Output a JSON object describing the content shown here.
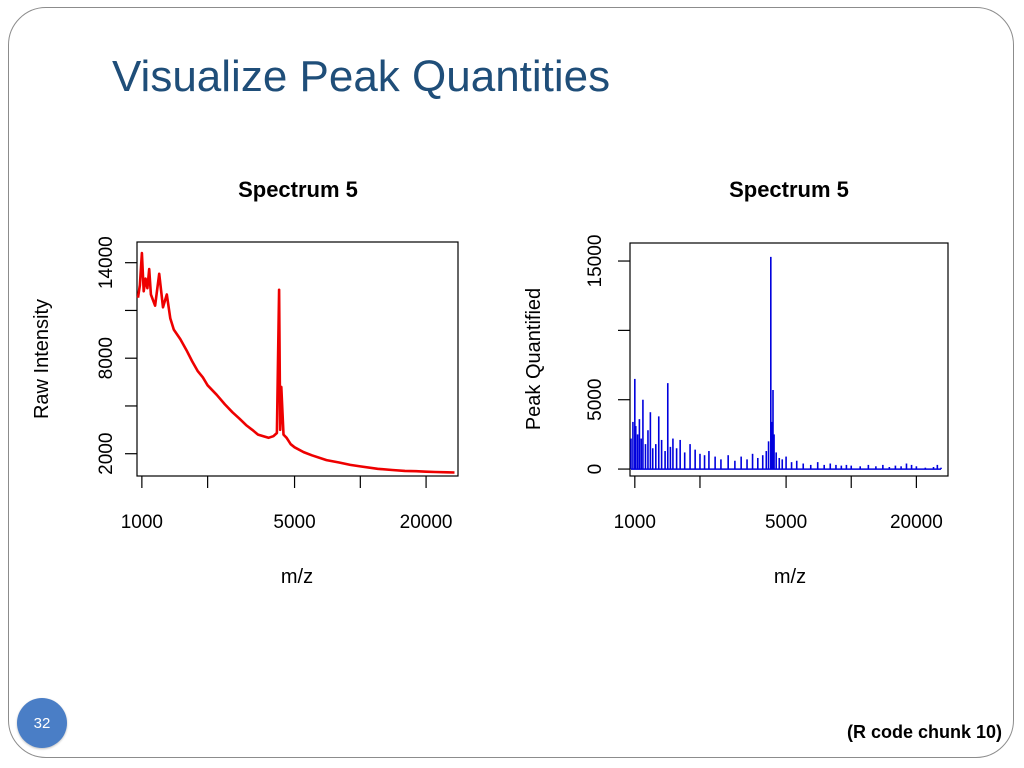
{
  "slide": {
    "title": "Visualize Peak Quantities",
    "page_number": "32",
    "footer_note": "(R code chunk 10)"
  },
  "colors": {
    "title": "#1f4e79",
    "raw": "#ee0000",
    "quantified": "#0000dd",
    "badge": "#4a7ec6"
  },
  "chart_data": [
    {
      "type": "line",
      "title": "Spectrum 5",
      "xlabel": "m/z",
      "ylabel": "Raw Intensity",
      "x_scale": "log",
      "xlim": [
        950,
        28000
      ],
      "ylim": [
        600,
        15300
      ],
      "x_ticks": [
        1000,
        2000,
        5000,
        10000,
        20000
      ],
      "x_tick_labels": [
        "1000",
        "",
        "5000",
        "",
        "20000"
      ],
      "y_ticks": [
        2000,
        5000,
        8000,
        11000,
        14000
      ],
      "y_tick_labels": [
        "2000",
        "",
        "8000",
        "",
        "14000"
      ],
      "series": [
        {
          "color": "#ee0000",
          "x": [
            960,
            980,
            1000,
            1020,
            1040,
            1060,
            1080,
            1100,
            1150,
            1200,
            1250,
            1300,
            1350,
            1400,
            1500,
            1600,
            1700,
            1800,
            1900,
            2000,
            2200,
            2400,
            2600,
            2800,
            3000,
            3200,
            3400,
            3600,
            3800,
            4000,
            4150,
            4250,
            4300,
            4350,
            4450,
            4600,
            4800,
            5000,
            5500,
            6000,
            7000,
            8000,
            9000,
            10000,
            12000,
            14000,
            16000,
            18000,
            20000,
            22000,
            25000,
            27000
          ],
          "y": [
            11800,
            12600,
            14600,
            12200,
            13000,
            12400,
            13600,
            12000,
            11300,
            13300,
            11200,
            12000,
            10500,
            9800,
            9200,
            8500,
            7800,
            7200,
            6800,
            6300,
            5700,
            5100,
            4600,
            4200,
            3800,
            3500,
            3200,
            3100,
            3000,
            3100,
            3300,
            12300,
            3500,
            6200,
            3200,
            3000,
            2600,
            2400,
            2100,
            1900,
            1600,
            1450,
            1300,
            1200,
            1050,
            980,
            920,
            900,
            870,
            850,
            830,
            820
          ]
        }
      ]
    },
    {
      "type": "bar",
      "title": "Spectrum 5",
      "xlabel": "m/z",
      "ylabel": "Peak Quantified",
      "x_scale": "log",
      "xlim": [
        950,
        28000
      ],
      "ylim": [
        -500,
        16300
      ],
      "x_ticks": [
        1000,
        2000,
        5000,
        10000,
        20000
      ],
      "x_tick_labels": [
        "1000",
        "",
        "5000",
        "",
        "20000"
      ],
      "y_ticks": [
        0,
        5000,
        10000,
        15000
      ],
      "y_tick_labels": [
        "0",
        "5000",
        "",
        "15000"
      ],
      "series": [
        {
          "color": "#0000dd",
          "x": [
            960,
            980,
            1000,
            1010,
            1030,
            1050,
            1070,
            1090,
            1120,
            1150,
            1180,
            1210,
            1250,
            1290,
            1330,
            1380,
            1420,
            1460,
            1500,
            1560,
            1620,
            1700,
            1800,
            1900,
            2000,
            2100,
            2200,
            2350,
            2500,
            2700,
            2900,
            3100,
            3300,
            3500,
            3700,
            3900,
            4050,
            4150,
            4250,
            4300,
            4350,
            4400,
            4500,
            4650,
            4800,
            5000,
            5300,
            5600,
            6000,
            6500,
            7000,
            7500,
            8000,
            8500,
            9000,
            9500,
            10000,
            11000,
            12000,
            13000,
            14000,
            15000,
            16000,
            17000,
            18000,
            19000,
            20000,
            22000,
            24000,
            25000,
            26000
          ],
          "y": [
            2200,
            3400,
            6500,
            3100,
            2500,
            3600,
            2200,
            5000,
            1800,
            2800,
            4100,
            1500,
            1800,
            3800,
            2100,
            1300,
            6200,
            1600,
            2200,
            1500,
            2100,
            1200,
            1800,
            1400,
            1100,
            1000,
            1300,
            900,
            700,
            1000,
            600,
            900,
            700,
            1100,
            800,
            1000,
            1300,
            2000,
            15300,
            3400,
            5700,
            2500,
            1200,
            800,
            700,
            900,
            500,
            600,
            400,
            300,
            500,
            300,
            400,
            300,
            250,
            300,
            250,
            200,
            300,
            200,
            300,
            150,
            250,
            200,
            400,
            300,
            200,
            100,
            150,
            300,
            100
          ]
        }
      ]
    }
  ]
}
